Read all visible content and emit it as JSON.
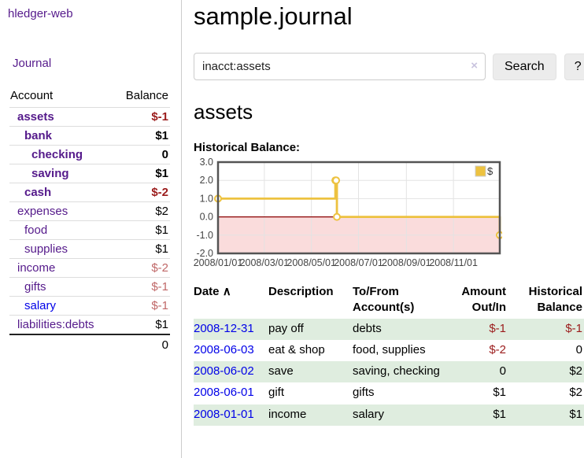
{
  "sidebar": {
    "brand": "hledger-web",
    "nav": {
      "journal": "Journal"
    },
    "accounts_table": {
      "headers": {
        "account": "Account",
        "balance": "Balance"
      },
      "rows": [
        {
          "name": "assets",
          "depth": 1,
          "bold": true,
          "balance": "$-1"
        },
        {
          "name": "bank",
          "depth": 2,
          "bold": true,
          "balance": "$1"
        },
        {
          "name": "checking",
          "depth": 3,
          "bold": true,
          "balance": "0"
        },
        {
          "name": "saving",
          "depth": 3,
          "bold": true,
          "balance": "$1"
        },
        {
          "name": "cash",
          "depth": 2,
          "bold": true,
          "balance": "$-2"
        },
        {
          "name": "expenses",
          "depth": 1,
          "bold": false,
          "balance": "$2"
        },
        {
          "name": "food",
          "depth": 2,
          "bold": false,
          "balance": "$1"
        },
        {
          "name": "supplies",
          "depth": 2,
          "bold": false,
          "balance": "$1"
        },
        {
          "name": "income",
          "depth": 1,
          "bold": false,
          "balance": "$-2"
        },
        {
          "name": "gifts",
          "depth": 2,
          "bold": false,
          "balance": "$-1"
        },
        {
          "name": "salary",
          "depth": 2,
          "bold": false,
          "balance": "$-1",
          "link_color": "blue"
        },
        {
          "name": "liabilities:debts",
          "depth": 1,
          "bold": false,
          "balance": "$1"
        }
      ],
      "total": "0"
    }
  },
  "main": {
    "title": "sample.journal",
    "search": {
      "value": "inacct:assets",
      "clear_icon": "×",
      "search_button": "Search",
      "help_button": "?"
    },
    "account_heading": "assets",
    "section_heading": "Historical Balance:"
  },
  "chart_data": {
    "type": "line",
    "step": true,
    "legend_label": "$",
    "legend_position": "top-right",
    "grid": true,
    "x": [
      "2008-01-01",
      "2008-06-01",
      "2008-06-02",
      "2008-06-03",
      "2008-12-31"
    ],
    "values": [
      1,
      2,
      2,
      0,
      -1
    ],
    "xmin": "2008-01-01",
    "xmax": "2008-12-31",
    "ylim": [
      -2,
      3
    ],
    "y_ticks": [
      {
        "value": 3,
        "label": "3.0"
      },
      {
        "value": 2,
        "label": "2.0"
      },
      {
        "value": 1,
        "label": "1.0"
      },
      {
        "value": 0,
        "label": "0.0"
      },
      {
        "value": -1,
        "label": "-1.0"
      },
      {
        "value": -2,
        "label": "-2.0"
      }
    ],
    "x_ticks": [
      {
        "date": "2008-01-01",
        "label": "2008/01/01"
      },
      {
        "date": "2008-03-01",
        "label": "2008/03/01"
      },
      {
        "date": "2008-05-01",
        "label": "2008/05/01"
      },
      {
        "date": "2008-07-01",
        "label": "2008/07/01"
      },
      {
        "date": "2008-09-01",
        "label": "2008/09/01"
      },
      {
        "date": "2008-11-01",
        "label": "2008/11/01"
      }
    ],
    "colors": {
      "line": "#edc240",
      "marker_fill": "#ffffff",
      "negative_region": "#fadcdc",
      "zero_line": "#8b0000",
      "grid": "#e3e3e3",
      "border": "#545454",
      "tick_text": "#444444"
    }
  },
  "register": {
    "headers": {
      "date": "Date",
      "sort_icon": "∧",
      "description": "Description",
      "accounts": "To/From Account(s)",
      "amount": "Amount Out/In",
      "balance": "Historical Balance"
    },
    "rows": [
      {
        "date": "2008-12-31",
        "description": "pay off",
        "accounts": "debts",
        "amount": "$-1",
        "balance": "$-1"
      },
      {
        "date": "2008-06-03",
        "description": "eat & shop",
        "accounts": "food, supplies",
        "amount": "$-2",
        "balance": "0"
      },
      {
        "date": "2008-06-02",
        "description": "save",
        "accounts": "saving, checking",
        "amount": "0",
        "balance": "$2"
      },
      {
        "date": "2008-06-01",
        "description": "gift",
        "accounts": "gifts",
        "amount": "$1",
        "balance": "$2"
      },
      {
        "date": "2008-01-01",
        "description": "income",
        "accounts": "salary",
        "amount": "$1",
        "balance": "$1"
      }
    ]
  },
  "colors": {
    "link_purple": "#551a8b",
    "link_blue": "#0000e8",
    "negative_strong": "#9b1c1c",
    "negative_faint": "#c06868",
    "row_green": "#dfeddf",
    "button_bg": "#ececec",
    "sidebar_divider": "#cccccc"
  }
}
